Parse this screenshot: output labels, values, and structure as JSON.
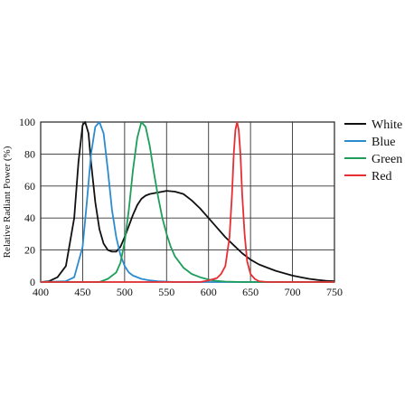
{
  "chart_data": {
    "type": "line",
    "title": "",
    "xlabel": "",
    "ylabel": "Relative Radiant Power (%)",
    "xlim": [
      400,
      750
    ],
    "ylim": [
      0,
      100
    ],
    "grid": true,
    "legend_position": "right",
    "x_ticks": [
      "400",
      "450",
      "500",
      "550",
      "600",
      "650",
      "700",
      "750"
    ],
    "y_ticks": [
      "0",
      "20",
      "40",
      "60",
      "80",
      "100"
    ],
    "series": [
      {
        "name": "White",
        "color": "#111111",
        "points": [
          [
            400,
            0
          ],
          [
            410,
            0.5
          ],
          [
            420,
            3
          ],
          [
            430,
            10
          ],
          [
            440,
            40
          ],
          [
            445,
            75
          ],
          [
            450,
            98
          ],
          [
            453,
            100
          ],
          [
            457,
            93
          ],
          [
            460,
            75
          ],
          [
            465,
            50
          ],
          [
            470,
            33
          ],
          [
            475,
            24
          ],
          [
            480,
            20
          ],
          [
            485,
            19
          ],
          [
            490,
            19
          ],
          [
            495,
            22
          ],
          [
            500,
            28
          ],
          [
            505,
            35
          ],
          [
            510,
            42
          ],
          [
            515,
            48
          ],
          [
            520,
            52
          ],
          [
            525,
            54
          ],
          [
            530,
            55
          ],
          [
            540,
            56
          ],
          [
            550,
            57
          ],
          [
            560,
            56.5
          ],
          [
            570,
            55
          ],
          [
            580,
            51
          ],
          [
            590,
            46
          ],
          [
            600,
            40
          ],
          [
            610,
            34
          ],
          [
            620,
            28
          ],
          [
            630,
            23
          ],
          [
            640,
            18
          ],
          [
            650,
            14
          ],
          [
            660,
            11
          ],
          [
            670,
            9
          ],
          [
            680,
            7
          ],
          [
            690,
            5.5
          ],
          [
            700,
            4
          ],
          [
            710,
            3
          ],
          [
            720,
            2
          ],
          [
            730,
            1.3
          ],
          [
            740,
            0.8
          ],
          [
            750,
            0.5
          ]
        ]
      },
      {
        "name": "Blue",
        "color": "#2a8ccf",
        "points": [
          [
            400,
            0
          ],
          [
            430,
            0.5
          ],
          [
            440,
            3
          ],
          [
            450,
            22
          ],
          [
            455,
            50
          ],
          [
            460,
            80
          ],
          [
            465,
            97
          ],
          [
            470,
            100
          ],
          [
            475,
            93
          ],
          [
            480,
            70
          ],
          [
            485,
            45
          ],
          [
            490,
            28
          ],
          [
            495,
            17
          ],
          [
            500,
            10
          ],
          [
            505,
            6
          ],
          [
            510,
            4
          ],
          [
            520,
            2
          ],
          [
            530,
            1
          ],
          [
            540,
            0.5
          ],
          [
            560,
            0
          ],
          [
            750,
            0
          ]
        ]
      },
      {
        "name": "Green",
        "color": "#1e9e5a",
        "points": [
          [
            400,
            0
          ],
          [
            470,
            0
          ],
          [
            480,
            2
          ],
          [
            490,
            6
          ],
          [
            495,
            12
          ],
          [
            500,
            25
          ],
          [
            505,
            45
          ],
          [
            510,
            70
          ],
          [
            515,
            90
          ],
          [
            520,
            100
          ],
          [
            525,
            97
          ],
          [
            530,
            85
          ],
          [
            535,
            68
          ],
          [
            540,
            53
          ],
          [
            545,
            40
          ],
          [
            550,
            30
          ],
          [
            555,
            22
          ],
          [
            560,
            16
          ],
          [
            570,
            9
          ],
          [
            580,
            5
          ],
          [
            590,
            3
          ],
          [
            600,
            1.5
          ],
          [
            610,
            0.7
          ],
          [
            620,
            0.3
          ],
          [
            640,
            0
          ],
          [
            750,
            0
          ]
        ]
      },
      {
        "name": "Red",
        "color": "#e62e33",
        "points": [
          [
            400,
            0
          ],
          [
            590,
            0
          ],
          [
            600,
            1
          ],
          [
            610,
            2.5
          ],
          [
            615,
            5
          ],
          [
            620,
            10
          ],
          [
            625,
            28
          ],
          [
            628,
            55
          ],
          [
            630,
            80
          ],
          [
            632,
            95
          ],
          [
            634,
            100
          ],
          [
            636,
            95
          ],
          [
            638,
            80
          ],
          [
            640,
            55
          ],
          [
            643,
            30
          ],
          [
            646,
            13
          ],
          [
            650,
            5
          ],
          [
            655,
            2
          ],
          [
            660,
            0.5
          ],
          [
            670,
            0
          ],
          [
            750,
            0
          ]
        ]
      }
    ]
  }
}
